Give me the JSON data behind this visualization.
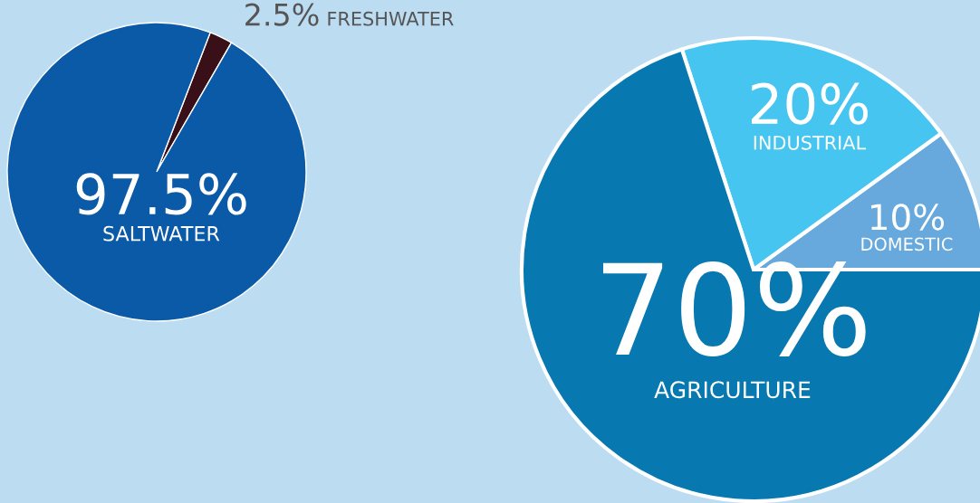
{
  "chart_data": [
    {
      "type": "pie",
      "categories": [
        "FRESHWATER",
        "SALTWATER"
      ],
      "values": [
        2.5,
        97.5
      ],
      "colors": [
        "#3a1018",
        "#0a5aa8"
      ],
      "value_labels": [
        "2.5%",
        "97.5%"
      ]
    },
    {
      "type": "pie",
      "categories": [
        "DOMESTIC",
        "INDUSTRIAL",
        "AGRICULTURE"
      ],
      "values": [
        10,
        20,
        70
      ],
      "colors": [
        "#68a9dd",
        "#45c5ef",
        "#0779b0"
      ],
      "value_labels": [
        "10%",
        "20%",
        "70%"
      ]
    }
  ]
}
